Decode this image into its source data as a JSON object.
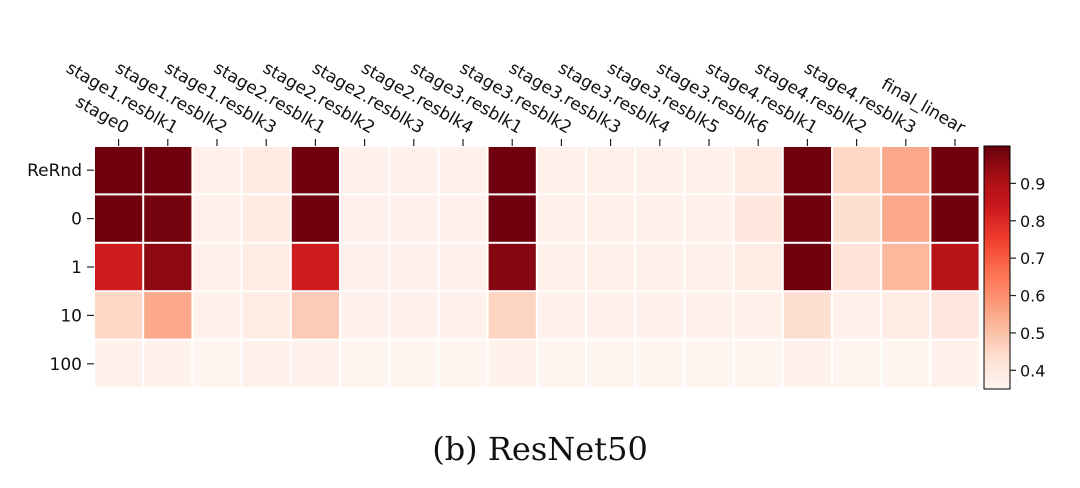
{
  "caption": "(b) ResNet50",
  "chart_data": {
    "type": "heatmap",
    "x_labels": [
      "stage0",
      "stage1.resblk1",
      "stage1.resblk2",
      "stage1.resblk3",
      "stage2.resblk1",
      "stage2.resblk2",
      "stage2.resblk3",
      "stage2.resblk4",
      "stage3.resblk1",
      "stage3.resblk2",
      "stage3.resblk3",
      "stage3.resblk4",
      "stage3.resblk5",
      "stage3.resblk6",
      "stage4.resblk1",
      "stage4.resblk2",
      "stage4.resblk3",
      "final_linear"
    ],
    "y_labels": [
      "ReRnd",
      "0",
      "1",
      "10",
      "100"
    ],
    "values": [
      [
        0.99,
        0.99,
        0.37,
        0.39,
        0.99,
        0.36,
        0.36,
        0.36,
        0.99,
        0.37,
        0.37,
        0.37,
        0.37,
        0.39,
        0.99,
        0.45,
        0.55,
        0.99
      ],
      [
        0.99,
        0.98,
        0.37,
        0.39,
        0.99,
        0.36,
        0.36,
        0.36,
        0.99,
        0.37,
        0.37,
        0.37,
        0.37,
        0.4,
        0.99,
        0.43,
        0.55,
        0.99
      ],
      [
        0.83,
        0.95,
        0.37,
        0.38,
        0.83,
        0.36,
        0.36,
        0.36,
        0.96,
        0.37,
        0.37,
        0.37,
        0.37,
        0.38,
        0.99,
        0.42,
        0.52,
        0.88
      ],
      [
        0.45,
        0.55,
        0.36,
        0.38,
        0.48,
        0.36,
        0.36,
        0.36,
        0.46,
        0.36,
        0.36,
        0.36,
        0.36,
        0.37,
        0.43,
        0.37,
        0.38,
        0.4
      ],
      [
        0.36,
        0.36,
        0.35,
        0.36,
        0.36,
        0.35,
        0.35,
        0.35,
        0.36,
        0.35,
        0.35,
        0.35,
        0.35,
        0.35,
        0.36,
        0.35,
        0.35,
        0.36
      ]
    ],
    "colorbar": {
      "min": 0.35,
      "max": 1.0,
      "ticks": [
        0.4,
        0.5,
        0.6,
        0.7,
        0.8,
        0.9
      ],
      "colormap": "Reds"
    },
    "grid": false,
    "legend": "colorbar-right",
    "title": "",
    "xlabel": "",
    "ylabel": ""
  }
}
